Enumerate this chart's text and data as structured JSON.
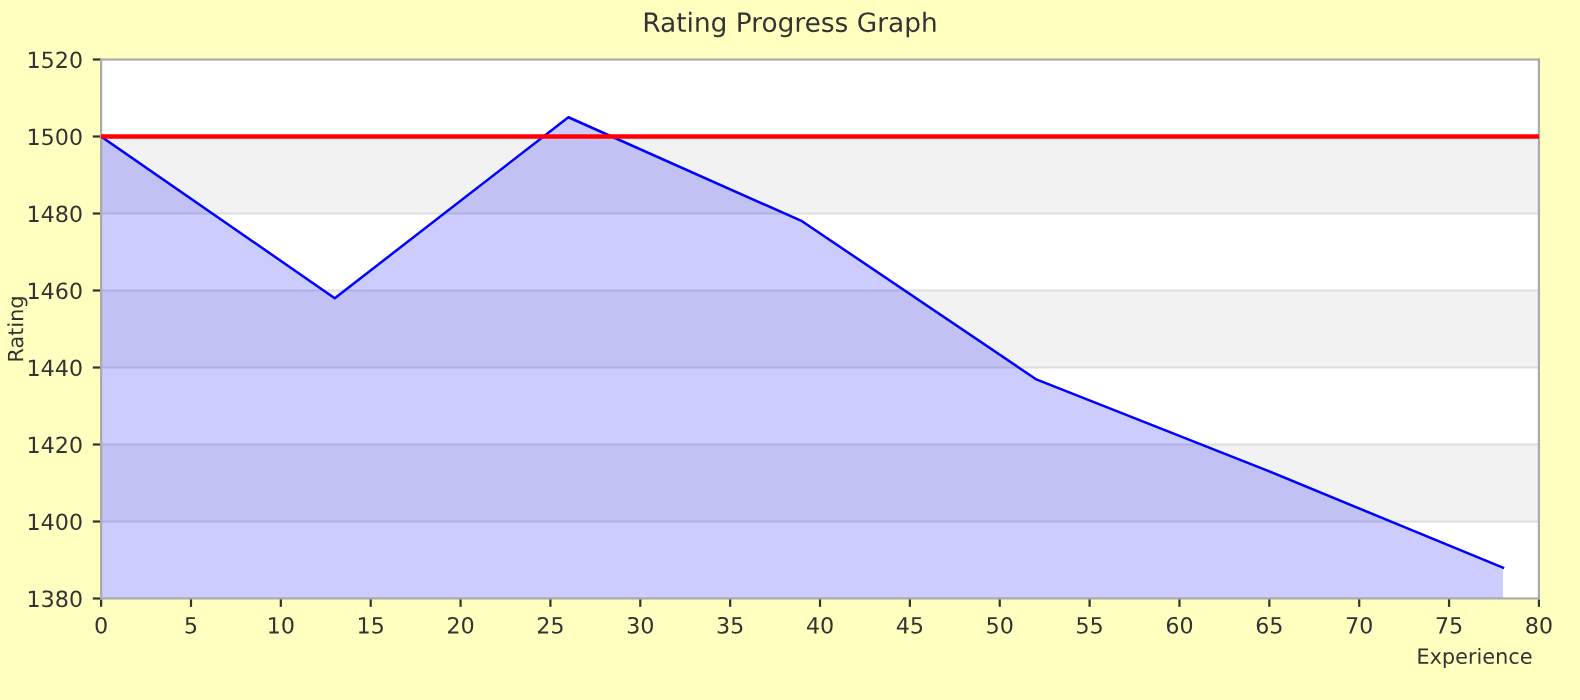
{
  "chart_data": {
    "type": "area",
    "title": "Rating Progress Graph",
    "xlabel": "Experience",
    "ylabel": "Rating",
    "x": [
      0,
      13,
      26,
      39,
      52,
      65,
      78
    ],
    "series": [
      {
        "color": "#0000ff",
        "values": [
          1500,
          1458,
          1505,
          1478,
          1437,
          1413,
          1388
        ]
      }
    ],
    "xlim": [
      0,
      80
    ],
    "ylim": [
      1380,
      1520
    ],
    "xticks": [
      0,
      5,
      10,
      15,
      20,
      25,
      30,
      35,
      40,
      45,
      50,
      55,
      60,
      65,
      70,
      75,
      80
    ],
    "yticks": [
      1380,
      1400,
      1420,
      1440,
      1460,
      1480,
      1500,
      1520
    ],
    "grid": "y",
    "ref_lines": [
      {
        "axis": "y",
        "value": 1500,
        "color": "#ff0000"
      }
    ],
    "bands": [
      {
        "axis": "y",
        "from": 1480,
        "to": 1500,
        "color": "#f2f2f2"
      },
      {
        "axis": "y",
        "from": 1440,
        "to": 1460,
        "color": "#f2f2f2"
      },
      {
        "axis": "y",
        "from": 1400,
        "to": 1420,
        "color": "#f2f2f2"
      }
    ]
  }
}
